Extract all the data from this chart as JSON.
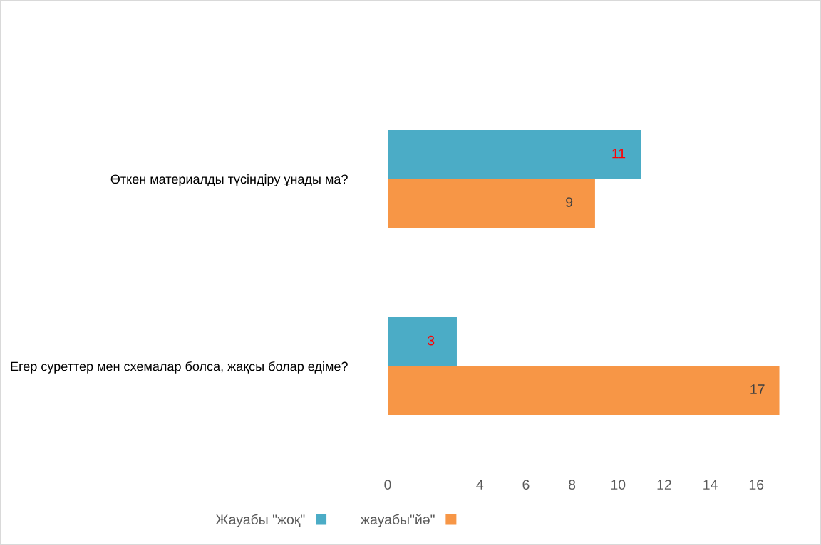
{
  "chart_data": {
    "type": "bar",
    "orientation": "horizontal",
    "categories": [
      "Өткен материалды түсіндіру ұнады ма?",
      "Егер суреттер мен схемалар болса, жақсы болар едіме?"
    ],
    "series": [
      {
        "name": "Жауабы \"жоқ\"",
        "color": "#4bacc6",
        "values": [
          11,
          3
        ]
      },
      {
        "name": "жауабы\"йә\"",
        "color": "#f79646",
        "values": [
          9,
          17
        ]
      }
    ],
    "xlim": [
      0,
      17.2
    ],
    "xticks": [
      0,
      4,
      6,
      8,
      10,
      12,
      14,
      16
    ],
    "data_labels": true,
    "grid": false,
    "legend": "bottom"
  }
}
